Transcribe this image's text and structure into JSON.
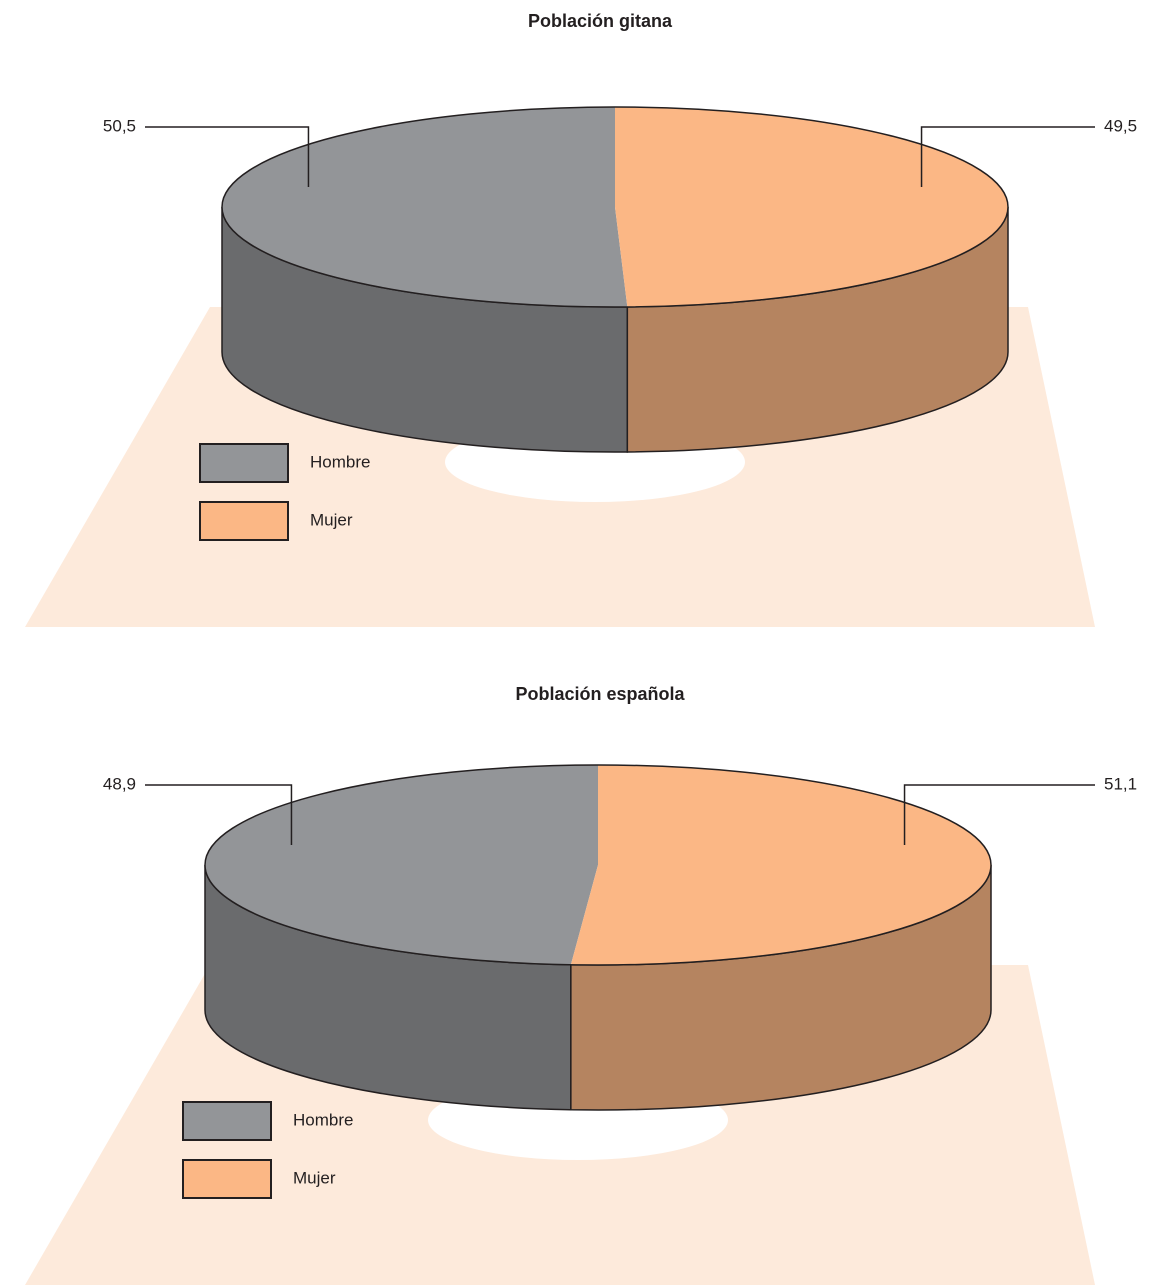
{
  "chart_data": [
    {
      "type": "pie",
      "title": "Población gitana",
      "categories": [
        "Hombre",
        "Mujer"
      ],
      "values": [
        50.5,
        49.5
      ],
      "value_labels": [
        "50,5",
        "49,5"
      ],
      "colors": [
        "#939598",
        "#fbb785"
      ]
    },
    {
      "type": "pie",
      "title": "Población española",
      "categories": [
        "Hombre",
        "Mujer"
      ],
      "values": [
        48.9,
        51.1
      ],
      "value_labels": [
        "48,9",
        "51,1"
      ],
      "colors": [
        "#939598",
        "#fbb785"
      ]
    }
  ]
}
